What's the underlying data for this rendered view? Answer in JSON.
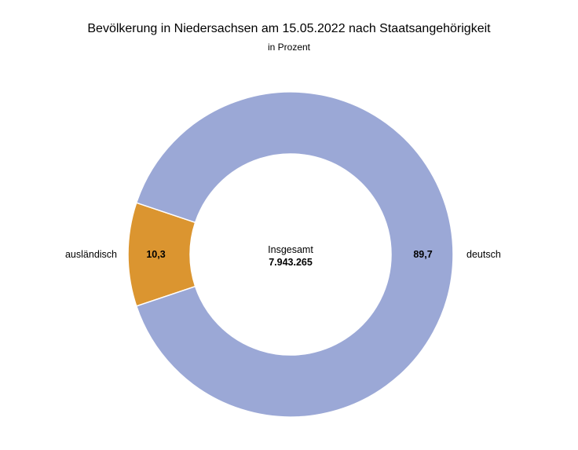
{
  "chart_data": {
    "type": "pie",
    "title": "Bevölkerung in Niedersachsen am 15.05.2022 nach Staatsangehörigkeit",
    "subtitle": "in Prozent",
    "center_label": "Insgesamt",
    "center_value": "7.943.265",
    "slices": [
      {
        "label": "deutsch",
        "value": 89.7,
        "value_label": "89,7",
        "color": "#9ba8d6"
      },
      {
        "label": "ausländisch",
        "value": 10.3,
        "value_label": "10,3",
        "color": "#db9530"
      }
    ]
  }
}
